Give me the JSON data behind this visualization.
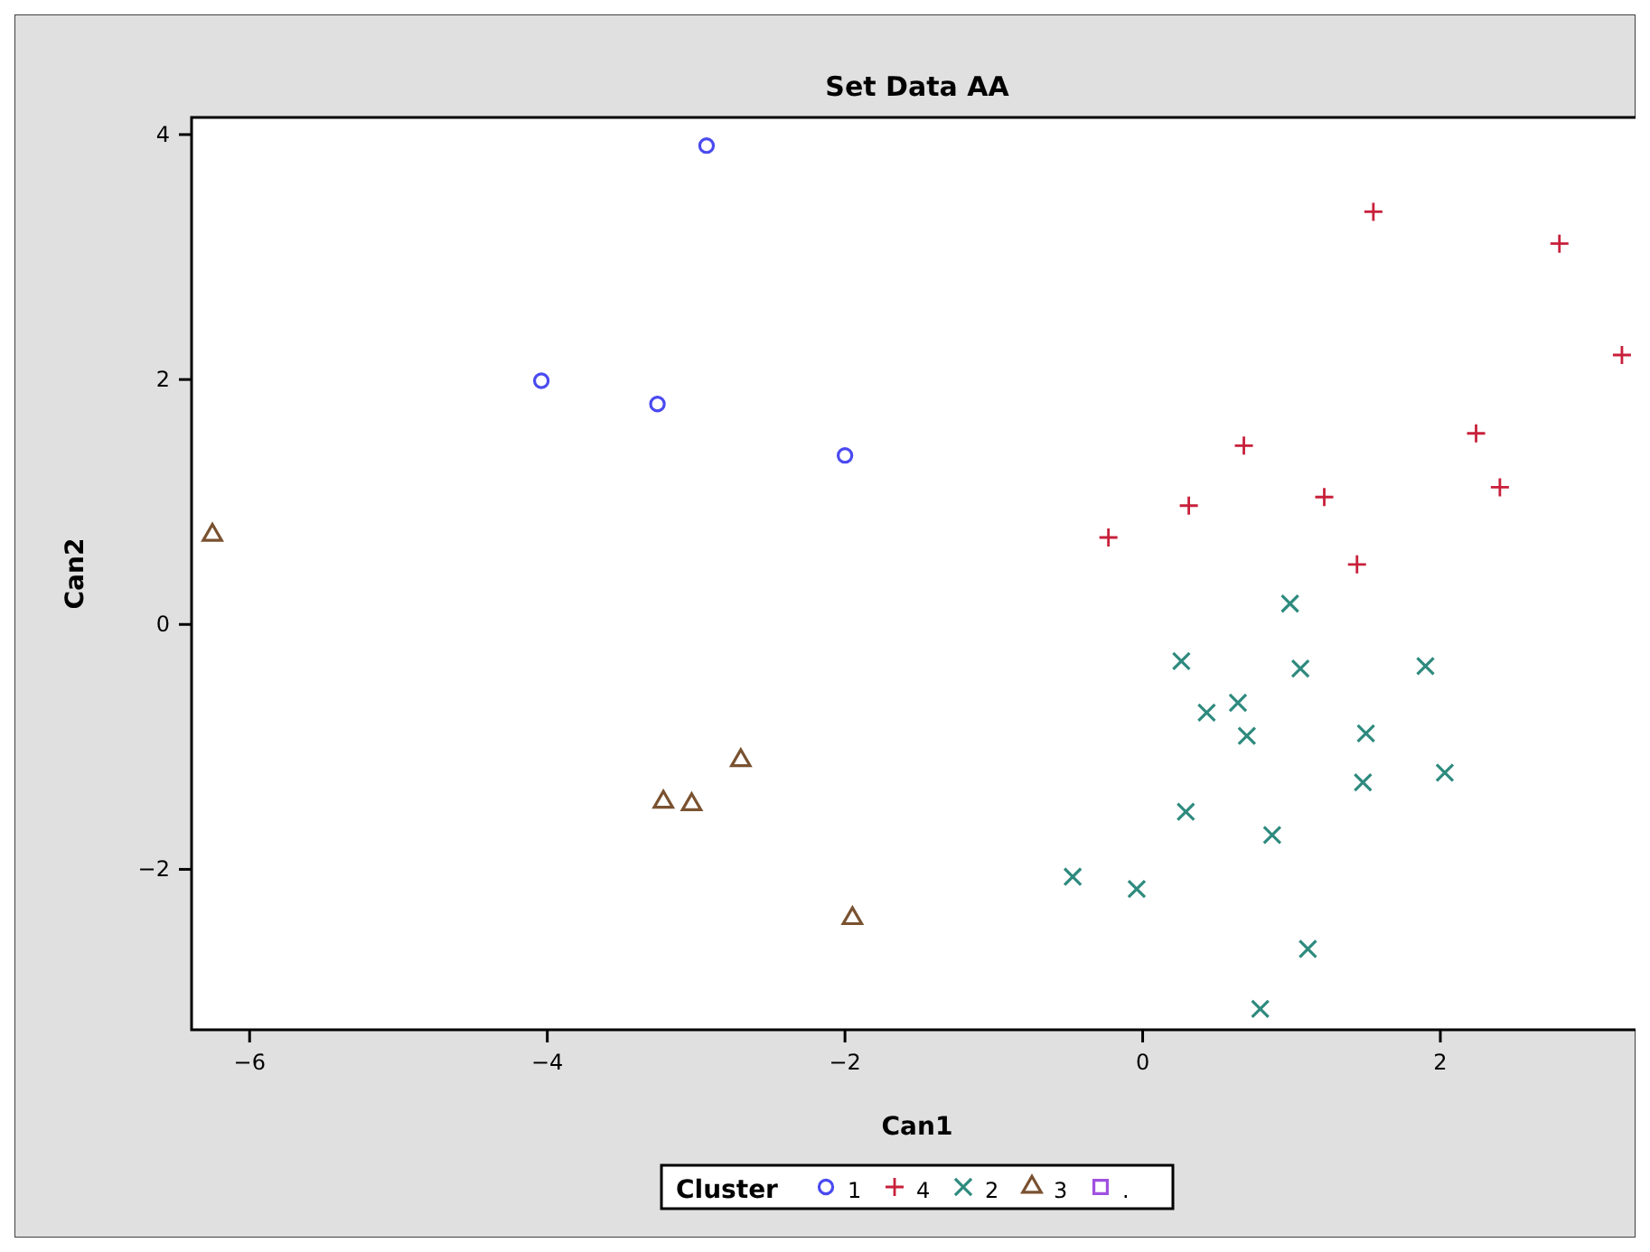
{
  "chart_data": {
    "type": "scatter",
    "title": "Set Data AA",
    "xlabel": "Can1",
    "ylabel": "Can2",
    "legend_title": "Cluster",
    "legend": "bottom",
    "grid": false,
    "xlim": [
      -6.39,
      3.36
    ],
    "ylim": [
      -3.31,
      4.14
    ],
    "xticks": [
      -6,
      -4,
      -2,
      0,
      2
    ],
    "yticks": [
      -2,
      0,
      2,
      4
    ],
    "series": [
      {
        "name": "1",
        "color": "#4a4af0",
        "marker": "circle",
        "x": [
          -2.93,
          -4.04,
          -3.26,
          -2.0
        ],
        "values": [
          3.91,
          1.99,
          1.8,
          1.38
        ]
      },
      {
        "name": "4",
        "color": "#c8203a",
        "marker": "cross",
        "x": [
          1.55,
          2.8,
          3.22,
          2.24,
          0.68,
          2.4,
          1.22,
          0.31,
          -0.23,
          1.44
        ],
        "values": [
          3.37,
          3.11,
          2.2,
          1.56,
          1.46,
          1.12,
          1.04,
          0.97,
          0.71,
          0.49
        ]
      },
      {
        "name": "2",
        "color": "#2e8a7e",
        "marker": "x",
        "x": [
          0.99,
          0.26,
          1.06,
          1.9,
          0.64,
          0.43,
          0.7,
          1.5,
          1.48,
          2.03,
          0.29,
          0.87,
          -0.47,
          -0.04,
          1.11,
          0.79
        ],
        "values": [
          0.17,
          -0.3,
          -0.36,
          -0.34,
          -0.64,
          -0.72,
          -0.91,
          -0.89,
          -1.29,
          -1.21,
          -1.53,
          -1.72,
          -2.06,
          -2.16,
          -2.65,
          -3.14
        ]
      },
      {
        "name": "3",
        "color": "#7a5230",
        "marker": "triangle",
        "x": [
          -6.25,
          -2.7,
          -3.22,
          -3.03,
          -1.95
        ],
        "values": [
          0.73,
          -1.11,
          -1.45,
          -1.47,
          -2.4
        ]
      },
      {
        "name": ".",
        "color": "#a050e0",
        "marker": "square"
      }
    ]
  }
}
